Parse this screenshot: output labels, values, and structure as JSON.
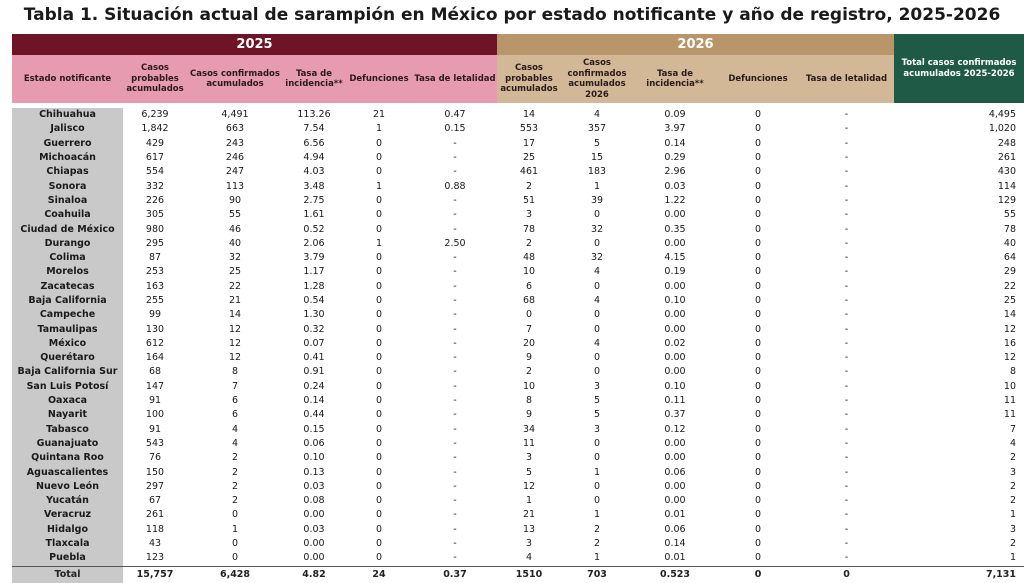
{
  "title": "Tabla 1. Situación actual de sarampión en México por estado notificante y año de registro, 2025-2026",
  "year_2025": "2025",
  "year_2026": "2026",
  "col_total": "Total casos confirmados acumulados 2025-2026",
  "col_state": "Estado notificante",
  "cols_2025": [
    "Casos probables acumulados",
    "Casos confirmados acumulados",
    "Tasa de incidencia**",
    "Defunciones",
    "Tasa de letalidad"
  ],
  "cols_2026": [
    "Casos probables acumulados",
    "Casos confirmados acumulados 2026",
    "Tasa de incidencia**",
    "Defunciones",
    "Tasa de letalidad"
  ],
  "rows": [
    [
      "Chihuahua",
      "6,239",
      "4,491",
      "113.26",
      "21",
      "0.47",
      "14",
      "4",
      "0.09",
      "0",
      "-",
      "4,495"
    ],
    [
      "Jalisco",
      "1,842",
      "663",
      "7.54",
      "1",
      "0.15",
      "553",
      "357",
      "3.97",
      "0",
      "-",
      "1,020"
    ],
    [
      "Guerrero",
      "429",
      "243",
      "6.56",
      "0",
      "-",
      "17",
      "5",
      "0.14",
      "0",
      "-",
      "248"
    ],
    [
      "Michoacán",
      "617",
      "246",
      "4.94",
      "0",
      "-",
      "25",
      "15",
      "0.29",
      "0",
      "-",
      "261"
    ],
    [
      "Chiapas",
      "554",
      "247",
      "4.03",
      "0",
      "-",
      "461",
      "183",
      "2.96",
      "0",
      "-",
      "430"
    ],
    [
      "Sonora",
      "332",
      "113",
      "3.48",
      "1",
      "0.88",
      "2",
      "1",
      "0.03",
      "0",
      "-",
      "114"
    ],
    [
      "Sinaloa",
      "226",
      "90",
      "2.75",
      "0",
      "-",
      "51",
      "39",
      "1.22",
      "0",
      "-",
      "129"
    ],
    [
      "Coahuila",
      "305",
      "55",
      "1.61",
      "0",
      "-",
      "3",
      "0",
      "0.00",
      "0",
      "-",
      "55"
    ],
    [
      "Ciudad de México",
      "980",
      "46",
      "0.52",
      "0",
      "-",
      "78",
      "32",
      "0.35",
      "0",
      "-",
      "78"
    ],
    [
      "Durango",
      "295",
      "40",
      "2.06",
      "1",
      "2.50",
      "2",
      "0",
      "0.00",
      "0",
      "-",
      "40"
    ],
    [
      "Colima",
      "87",
      "32",
      "3.79",
      "0",
      "-",
      "48",
      "32",
      "4.15",
      "0",
      "-",
      "64"
    ],
    [
      "Morelos",
      "253",
      "25",
      "1.17",
      "0",
      "-",
      "10",
      "4",
      "0.19",
      "0",
      "-",
      "29"
    ],
    [
      "Zacatecas",
      "163",
      "22",
      "1.28",
      "0",
      "-",
      "6",
      "0",
      "0.00",
      "0",
      "-",
      "22"
    ],
    [
      "Baja California",
      "255",
      "21",
      "0.54",
      "0",
      "-",
      "68",
      "4",
      "0.10",
      "0",
      "-",
      "25"
    ],
    [
      "Campeche",
      "99",
      "14",
      "1.30",
      "0",
      "-",
      "0",
      "0",
      "0.00",
      "0",
      "-",
      "14"
    ],
    [
      "Tamaulipas",
      "130",
      "12",
      "0.32",
      "0",
      "-",
      "7",
      "0",
      "0.00",
      "0",
      "-",
      "12"
    ],
    [
      "México",
      "612",
      "12",
      "0.07",
      "0",
      "-",
      "20",
      "4",
      "0.02",
      "0",
      "-",
      "16"
    ],
    [
      "Querétaro",
      "164",
      "12",
      "0.41",
      "0",
      "-",
      "9",
      "0",
      "0.00",
      "0",
      "-",
      "12"
    ],
    [
      "Baja California Sur",
      "68",
      "8",
      "0.91",
      "0",
      "-",
      "2",
      "0",
      "0.00",
      "0",
      "-",
      "8"
    ],
    [
      "San Luis Potosí",
      "147",
      "7",
      "0.24",
      "0",
      "-",
      "10",
      "3",
      "0.10",
      "0",
      "-",
      "10"
    ],
    [
      "Oaxaca",
      "91",
      "6",
      "0.14",
      "0",
      "-",
      "8",
      "5",
      "0.11",
      "0",
      "-",
      "11"
    ],
    [
      "Nayarit",
      "100",
      "6",
      "0.44",
      "0",
      "-",
      "9",
      "5",
      "0.37",
      "0",
      "-",
      "11"
    ],
    [
      "Tabasco",
      "91",
      "4",
      "0.15",
      "0",
      "-",
      "34",
      "3",
      "0.12",
      "0",
      "-",
      "7"
    ],
    [
      "Guanajuato",
      "543",
      "4",
      "0.06",
      "0",
      "-",
      "11",
      "0",
      "0.00",
      "0",
      "-",
      "4"
    ],
    [
      "Quintana Roo",
      "76",
      "2",
      "0.10",
      "0",
      "-",
      "3",
      "0",
      "0.00",
      "0",
      "-",
      "2"
    ],
    [
      "Aguascalientes",
      "150",
      "2",
      "0.13",
      "0",
      "-",
      "5",
      "1",
      "0.06",
      "0",
      "-",
      "3"
    ],
    [
      "Nuevo León",
      "297",
      "2",
      "0.03",
      "0",
      "-",
      "12",
      "0",
      "0.00",
      "0",
      "-",
      "2"
    ],
    [
      "Yucatán",
      "67",
      "2",
      "0.08",
      "0",
      "-",
      "1",
      "0",
      "0.00",
      "0",
      "-",
      "2"
    ],
    [
      "Veracruz",
      "261",
      "0",
      "0.00",
      "0",
      "-",
      "21",
      "1",
      "0.01",
      "0",
      "-",
      "1"
    ],
    [
      "Hidalgo",
      "118",
      "1",
      "0.03",
      "0",
      "-",
      "13",
      "2",
      "0.06",
      "0",
      "-",
      "3"
    ],
    [
      "Tlaxcala",
      "43",
      "0",
      "0.00",
      "0",
      "-",
      "3",
      "2",
      "0.14",
      "0",
      "-",
      "2"
    ],
    [
      "Puebla",
      "123",
      "0",
      "0.00",
      "0",
      "-",
      "4",
      "1",
      "0.01",
      "0",
      "-",
      "1"
    ]
  ],
  "total": [
    "Total",
    "15,757",
    "6,428",
    "4.82",
    "24",
    "0.37",
    "1510",
    "703",
    "0.523",
    "0",
    "0",
    "7,131"
  ]
}
